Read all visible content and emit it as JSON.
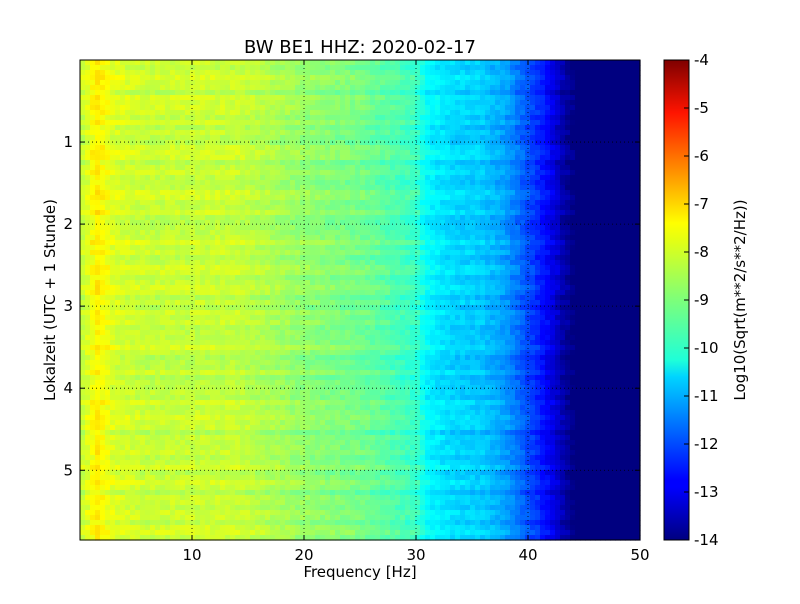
{
  "chart_data": {
    "type": "heatmap",
    "title": "BW BE1 HHZ: 2020-02-17",
    "xlabel": "Frequency [Hz]",
    "ylabel": "Lokalzeit (UTC + 1 Stunde)",
    "colorbar_label": "Log10(Sqrt(m**2/s**2/Hz))",
    "xlim": [
      0,
      50
    ],
    "ylim": [
      5.85,
      0
    ],
    "x_ticks": [
      "10",
      "20",
      "30",
      "40",
      "50"
    ],
    "y_ticks": [
      "1",
      "2",
      "3",
      "4",
      "5"
    ],
    "x_tick_values": [
      10,
      20,
      30,
      40,
      50
    ],
    "y_tick_values": [
      1,
      2,
      3,
      4,
      5
    ],
    "colorbar_ticks": [
      "-4",
      "-5",
      "-6",
      "-7",
      "-8",
      "-9",
      "-10",
      "-11",
      "-12",
      "-13",
      "-14"
    ],
    "colorbar_tick_values": [
      -4,
      -5,
      -6,
      -7,
      -8,
      -9,
      -10,
      -11,
      -12,
      -13,
      -14
    ],
    "clim": [
      -14,
      -4
    ],
    "colormap": "jet",
    "grid": true,
    "profile_frequency_hz": [
      0,
      1,
      1.5,
      3,
      6,
      10,
      14,
      20,
      25,
      30,
      31,
      33,
      36,
      38,
      39,
      41,
      42,
      43,
      44,
      50
    ],
    "profile_log10_amplitude": [
      -8.4,
      -7.9,
      -7.6,
      -8.1,
      -8.3,
      -8.3,
      -8.3,
      -8.8,
      -9.1,
      -9.7,
      -10.3,
      -10.6,
      -10.8,
      -11.2,
      -11.6,
      -12.4,
      -12.9,
      -13.5,
      -14,
      -14
    ]
  }
}
